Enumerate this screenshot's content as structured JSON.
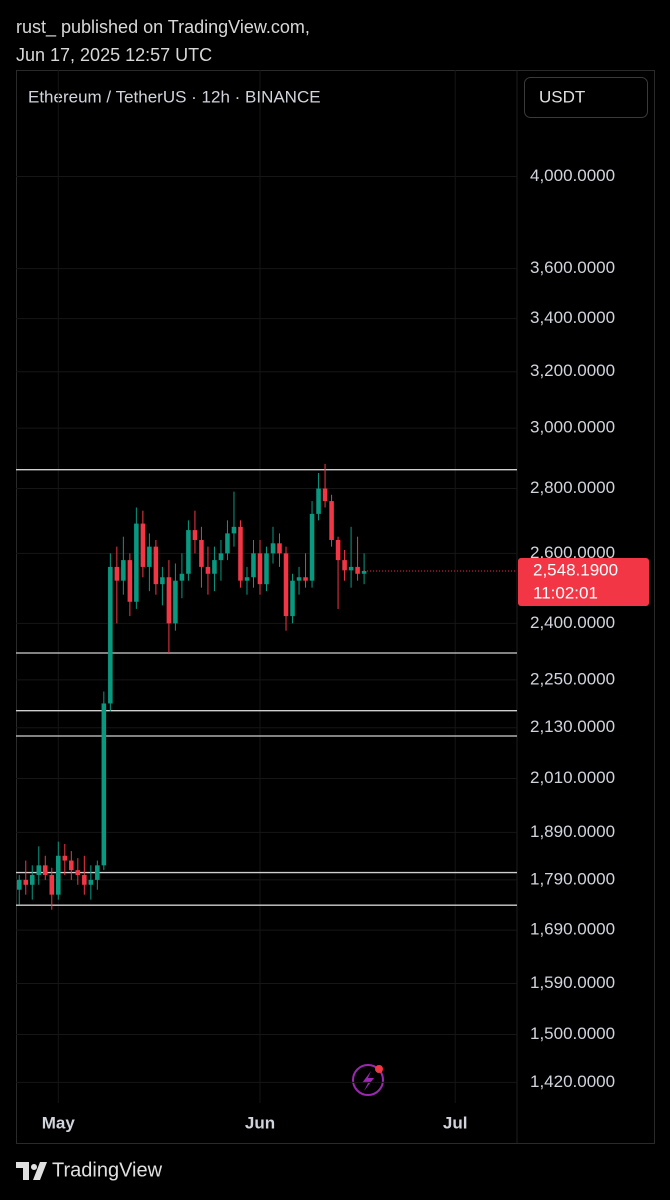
{
  "header": {
    "line1": "rust_ published on TradingView.com,",
    "line2": "Jun 17, 2025 12:57 UTC"
  },
  "footer": {
    "brand": "TradingView"
  },
  "chart_data": {
    "type": "candlestick",
    "title": "Ethereum / TetherUS · 12h · BINANCE",
    "currency": "USDT",
    "log_scale": true,
    "grid": true,
    "up_color": "#089981",
    "down_color": "#f23645",
    "categories": [
      null,
      null,
      null,
      null,
      null,
      null,
      "May",
      null,
      null,
      null,
      null,
      null,
      null,
      null,
      null,
      null,
      null,
      null,
      null,
      null,
      null,
      null,
      null,
      null,
      null,
      null,
      null,
      null,
      null,
      null,
      null,
      null,
      null,
      null,
      null,
      null,
      null,
      "Jun",
      null,
      null,
      null,
      null,
      null,
      null,
      null,
      null,
      null,
      null,
      null,
      null,
      null,
      null,
      null,
      null,
      null,
      null,
      null,
      null,
      null,
      null,
      null,
      null,
      null,
      null,
      null,
      null,
      null,
      "Jul",
      null,
      null,
      null,
      null,
      null,
      null,
      null,
      null,
      null
    ],
    "open": [
      1770,
      1790,
      1780,
      1800,
      1820,
      1800,
      1760,
      1840,
      1830,
      1810,
      1800,
      1780,
      1790,
      1820,
      2190,
      2560,
      2520,
      2580,
      2460,
      2690,
      2560,
      2620,
      2510,
      2530,
      2400,
      2520,
      2540,
      2670,
      2640,
      2560,
      2540,
      2580,
      2600,
      2660,
      2680,
      2520,
      2530,
      2600,
      2510,
      2600,
      2630,
      2600,
      2420,
      2520,
      2530,
      2520,
      2720,
      2800,
      2760,
      2640,
      2580,
      2550,
      2560,
      2540,
      null,
      null,
      null,
      null,
      null,
      null,
      null,
      null,
      null,
      null,
      null,
      null,
      null,
      null,
      null,
      null,
      null,
      null,
      null,
      null,
      null,
      null,
      null
    ],
    "high": [
      1800,
      1830,
      1820,
      1860,
      1840,
      1815,
      1870,
      1865,
      1850,
      1835,
      1840,
      1820,
      1830,
      2220,
      2600,
      2620,
      2650,
      2600,
      2740,
      2730,
      2660,
      2640,
      2560,
      2580,
      2570,
      2600,
      2700,
      2730,
      2680,
      2620,
      2620,
      2640,
      2700,
      2790,
      2700,
      2560,
      2640,
      2640,
      2620,
      2680,
      2660,
      2620,
      2540,
      2560,
      2600,
      2760,
      2850,
      2880,
      2780,
      2650,
      2610,
      2680,
      2650,
      2600,
      null,
      null,
      null,
      null,
      null,
      null,
      null,
      null,
      null,
      null,
      null,
      null,
      null,
      null,
      null,
      null,
      null,
      null,
      null,
      null,
      null,
      null,
      null
    ],
    "low": [
      1740,
      1760,
      1750,
      1780,
      1790,
      1730,
      1750,
      1800,
      1790,
      1780,
      1760,
      1750,
      1770,
      1810,
      2170,
      2400,
      2480,
      2420,
      2440,
      2530,
      2490,
      2480,
      2450,
      2320,
      2380,
      2470,
      2520,
      2600,
      2500,
      2480,
      2490,
      2520,
      2580,
      2620,
      2500,
      2480,
      2500,
      2480,
      2490,
      2570,
      2560,
      2380,
      2400,
      2480,
      2500,
      2500,
      2700,
      2740,
      2620,
      2440,
      2520,
      2500,
      2520,
      2510,
      null,
      null,
      null,
      null,
      null,
      null,
      null,
      null,
      null,
      null,
      null,
      null,
      null,
      null,
      null,
      null,
      null,
      null,
      null,
      null,
      null,
      null,
      null
    ],
    "close": [
      1790,
      1780,
      1800,
      1820,
      1800,
      1760,
      1840,
      1830,
      1810,
      1800,
      1780,
      1790,
      1820,
      2190,
      2560,
      2520,
      2580,
      2460,
      2690,
      2560,
      2620,
      2510,
      2530,
      2400,
      2520,
      2540,
      2670,
      2640,
      2560,
      2540,
      2580,
      2600,
      2660,
      2680,
      2520,
      2530,
      2600,
      2510,
      2600,
      2630,
      2600,
      2420,
      2520,
      2530,
      2520,
      2720,
      2800,
      2760,
      2640,
      2580,
      2550,
      2560,
      2540,
      2548.19,
      null,
      null,
      null,
      null,
      null,
      null,
      null,
      null,
      null,
      null,
      null,
      null,
      null,
      null,
      null,
      null,
      null,
      null,
      null,
      null,
      null,
      null,
      null
    ],
    "levels": [
      2861,
      2320,
      2172,
      2110,
      1805,
      1739
    ],
    "last_price": {
      "value": 2548.19,
      "label": "2,548.1900"
    },
    "countdown": "11:02:01",
    "ylim": [
      1387,
      4518
    ],
    "yticks": [
      {
        "value": 4000,
        "label": "4,000.0000"
      },
      {
        "value": 3600,
        "label": "3,600.0000"
      },
      {
        "value": 3400,
        "label": "3,400.0000"
      },
      {
        "value": 3200,
        "label": "3,200.0000"
      },
      {
        "value": 3000,
        "label": "3,000.0000"
      },
      {
        "value": 2800,
        "label": "2,800.0000"
      },
      {
        "value": 2600,
        "label": "2,600.0000"
      },
      {
        "value": 2400,
        "label": "2,400.0000"
      },
      {
        "value": 2250,
        "label": "2,250.0000"
      },
      {
        "value": 2130,
        "label": "2,130.0000"
      },
      {
        "value": 2010,
        "label": "2,010.0000"
      },
      {
        "value": 1890,
        "label": "1,890.0000"
      },
      {
        "value": 1790,
        "label": "1,790.0000"
      },
      {
        "value": 1690,
        "label": "1,690.0000"
      },
      {
        "value": 1590,
        "label": "1,590.0000"
      },
      {
        "value": 1500,
        "label": "1,500.0000"
      },
      {
        "value": 1420,
        "label": "1,420.0000"
      }
    ]
  }
}
